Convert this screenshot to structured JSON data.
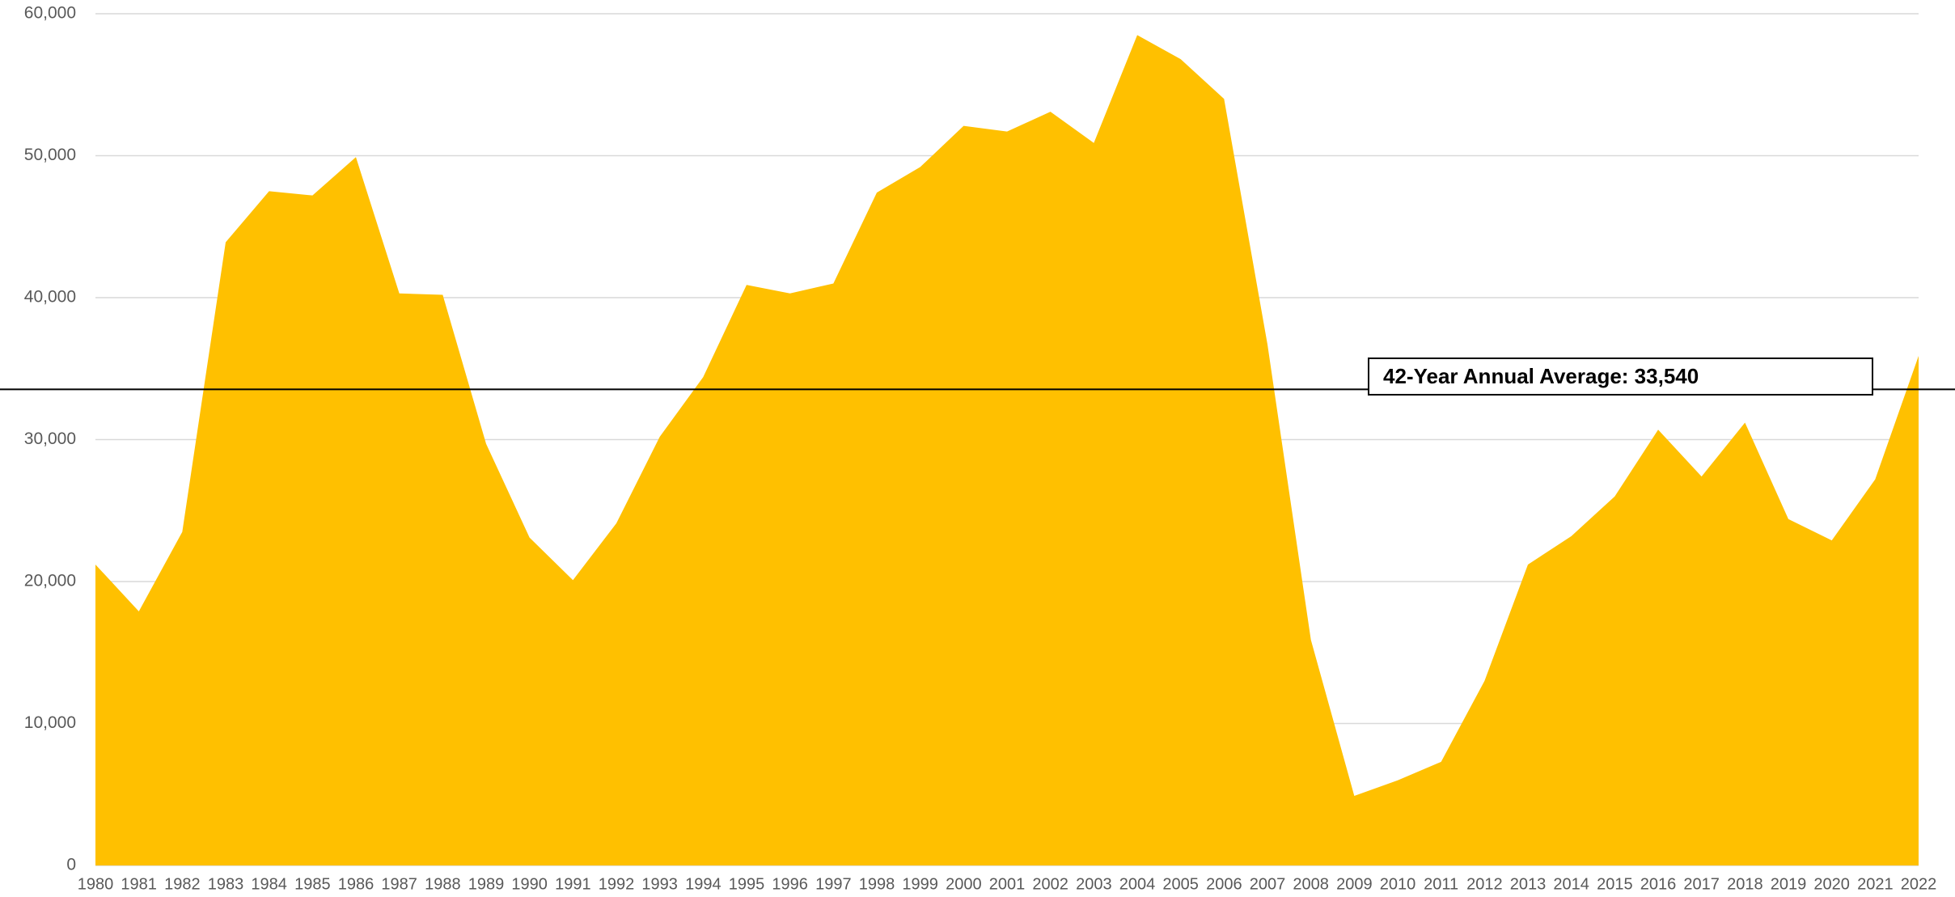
{
  "chart_data": {
    "type": "area",
    "categories": [
      "1980",
      "1981",
      "1982",
      "1983",
      "1984",
      "1985",
      "1986",
      "1987",
      "1988",
      "1989",
      "1990",
      "1991",
      "1992",
      "1993",
      "1994",
      "1995",
      "1996",
      "1997",
      "1998",
      "1999",
      "2000",
      "2001",
      "2002",
      "2003",
      "2004",
      "2005",
      "2006",
      "2007",
      "2008",
      "2009",
      "2010",
      "2011",
      "2012",
      "2013",
      "2014",
      "2015",
      "2016",
      "2017",
      "2018",
      "2019",
      "2020",
      "2021",
      "2022"
    ],
    "series": [
      {
        "color": "#ffc000",
        "values": [
          21200,
          17900,
          23500,
          43900,
          47500,
          47200,
          49900,
          40300,
          40200,
          29700,
          23100,
          20100,
          24100,
          30200,
          34400,
          40900,
          40300,
          41000,
          47400,
          49200,
          52100,
          51700,
          53100,
          50900,
          58500,
          56800,
          54000,
          36700,
          15900,
          4900,
          6000,
          7300,
          13000,
          21200,
          23200,
          26000,
          30700,
          27400,
          31200,
          24400,
          22900,
          27200,
          35900
        ]
      }
    ],
    "ylim": [
      0,
      60000
    ],
    "yticks": [
      0,
      {
        "value": 10000,
        "label": "10,000"
      },
      {
        "value": 20000,
        "label": "20,000"
      },
      {
        "value": 30000,
        "label": "30,000"
      },
      {
        "value": 40000,
        "label": "40,000"
      },
      {
        "value": 50000,
        "label": "50,000"
      },
      {
        "value": 60000,
        "label": "60,000"
      }
    ],
    "grid": true,
    "annotation": {
      "text": "42-Year Annual Average: 33,540",
      "value": 33540
    }
  }
}
